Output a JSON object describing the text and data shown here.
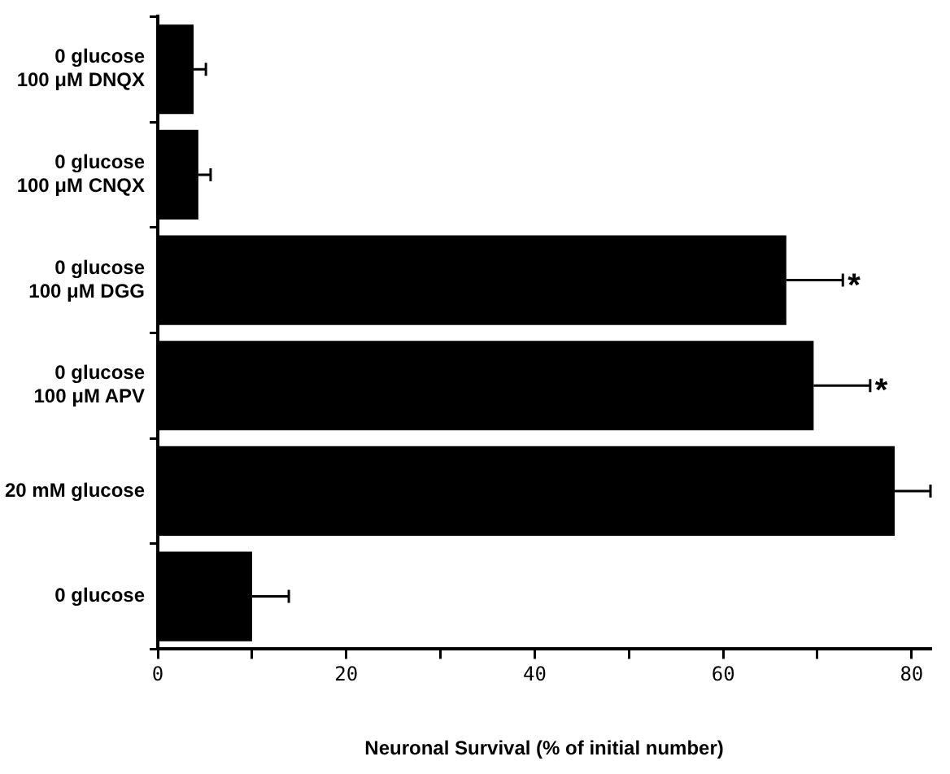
{
  "chart_data": {
    "type": "bar",
    "orientation": "horizontal",
    "xlabel": "Neuronal Survival (% of initial number)",
    "categories": [
      "0 glucose\n100 μM DNQX",
      "0 glucose\n100 μM CNQX",
      "0 glucose\n100 μM DGG",
      "0 glucose\n100 μM APV",
      "20 mM glucose",
      "0 glucose"
    ],
    "values": [
      3.8,
      4.3,
      66.7,
      69.6,
      78.2,
      10.0
    ],
    "errors": [
      1.3,
      1.3,
      6.0,
      6.0,
      3.8,
      3.9
    ],
    "color": "#000000",
    "xlim": [
      0,
      82
    ],
    "xticks": [
      0,
      {
        "value": 10,
        "label": null
      },
      20,
      {
        "value": 30,
        "label": null
      },
      40,
      {
        "value": 50,
        "label": null
      },
      60,
      {
        "value": 70,
        "label": null
      },
      80
    ],
    "grid": false,
    "legend": false,
    "annotations": [
      {
        "text": "*",
        "x": 72.7,
        "y": "0 glucose\n100 μM DGG"
      },
      {
        "text": "*",
        "x": 75.6,
        "y": "0 glucose\n100 μM APV"
      }
    ]
  }
}
